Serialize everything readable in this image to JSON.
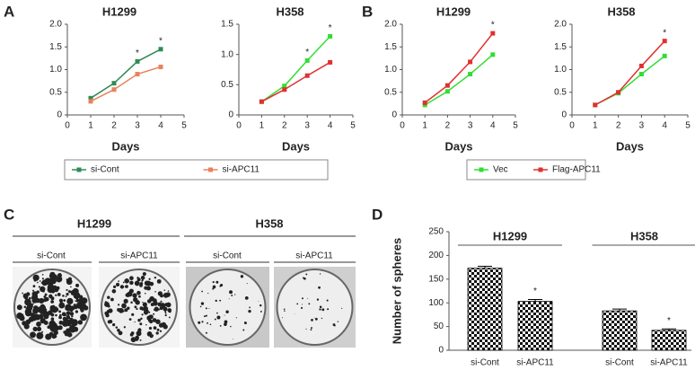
{
  "panels": {
    "labels": [
      "A",
      "B",
      "C",
      "D"
    ]
  },
  "chart_data": [
    {
      "type": "line",
      "title": "H1299",
      "x_label": "Days",
      "x": [
        1,
        2,
        3,
        4
      ],
      "xlim": [
        0,
        5
      ],
      "xticks": [
        0,
        1,
        2,
        3,
        4,
        5
      ],
      "ylim": [
        0,
        2
      ],
      "yticks": [
        0,
        0.5,
        {
          "value": 1,
          "label": "1.0"
        },
        1.5,
        {
          "value": 2,
          "label": "2.0"
        }
      ],
      "series": [
        {
          "name": "si-Cont",
          "color": "#2e8b57",
          "values": [
            0.37,
            0.7,
            1.18,
            1.45
          ]
        },
        {
          "name": "si-APC11",
          "color": "#e8825a",
          "values": [
            0.3,
            0.56,
            0.9,
            1.06
          ]
        }
      ],
      "annotations": [
        {
          "text": "*",
          "x": 3
        },
        {
          "text": "*",
          "x": 4
        }
      ]
    },
    {
      "type": "line",
      "title": "H358",
      "x_label": "Days",
      "x": [
        1,
        2,
        3,
        4
      ],
      "xlim": [
        0,
        5
      ],
      "xticks": [
        0,
        1,
        2,
        3,
        4,
        5
      ],
      "ylim": [
        0,
        1.5
      ],
      "yticks": [
        0,
        0.5,
        {
          "value": 1,
          "label": "1.0"
        },
        1.5
      ],
      "series": [
        {
          "name": "si-Cont",
          "color": "#33dd33",
          "values": [
            0.22,
            0.48,
            0.9,
            1.3
          ]
        },
        {
          "name": "si-APC11",
          "color": "#e03030",
          "values": [
            0.22,
            0.42,
            0.65,
            0.87
          ]
        }
      ],
      "annotations": [
        {
          "text": "*",
          "x": 3
        },
        {
          "text": "*",
          "x": 4
        }
      ]
    },
    {
      "type": "line",
      "title": "H1299",
      "x_label": "Days",
      "x": [
        1,
        2,
        3,
        4
      ],
      "xlim": [
        0,
        5
      ],
      "xticks": [
        0,
        1,
        2,
        3,
        4,
        5
      ],
      "ylim": [
        0,
        2
      ],
      "yticks": [
        0,
        0.5,
        {
          "value": 1,
          "label": "1.0"
        },
        1.5,
        {
          "value": 2,
          "label": "2.0"
        }
      ],
      "series": [
        {
          "name": "Vec",
          "color": "#33dd33",
          "values": [
            0.22,
            0.52,
            0.9,
            1.33
          ]
        },
        {
          "name": "Flag-APC11",
          "color": "#e03030",
          "values": [
            0.27,
            0.65,
            1.17,
            1.8
          ]
        }
      ],
      "annotations": [
        {
          "text": "*",
          "x": 4
        }
      ]
    },
    {
      "type": "line",
      "title": "H358",
      "x_label": "Days",
      "x": [
        1,
        2,
        3,
        4
      ],
      "xlim": [
        0,
        5
      ],
      "xticks": [
        0,
        1,
        2,
        3,
        4,
        5
      ],
      "ylim": [
        0,
        2
      ],
      "yticks": [
        0,
        0.5,
        {
          "value": 1,
          "label": "1.0"
        },
        1.5,
        {
          "value": 2,
          "label": "2.0"
        }
      ],
      "series": [
        {
          "color": "#33dd33",
          "values": [
            0.22,
            0.48,
            0.9,
            1.3
          ]
        },
        {
          "color": "#e03030",
          "values": [
            0.22,
            0.5,
            1.08,
            1.63
          ]
        }
      ],
      "annotations": [
        {
          "text": "*",
          "x": 4
        }
      ]
    },
    {
      "type": "bar",
      "y_label": "Number of spheres",
      "groups": [
        "H1299",
        "H358"
      ],
      "categories": [
        "si-Cont",
        "si-APC11",
        "si-Cont",
        "si-APC11"
      ],
      "values": [
        173,
        103,
        83,
        42
      ],
      "errors": [
        4,
        4,
        4,
        3
      ],
      "color": "#000000",
      "ylim": [
        0,
        250
      ],
      "yticks": [
        0,
        50,
        100,
        150,
        200,
        250
      ],
      "annotations": [
        {
          "text": "*",
          "index": 1
        },
        {
          "text": "*",
          "index": 3
        }
      ]
    }
  ],
  "colony_panel": {
    "groups": [
      "H1299",
      "H358"
    ],
    "conditions": [
      "si-Cont",
      "si-APC11",
      "si-Cont",
      "si-APC11"
    ]
  }
}
